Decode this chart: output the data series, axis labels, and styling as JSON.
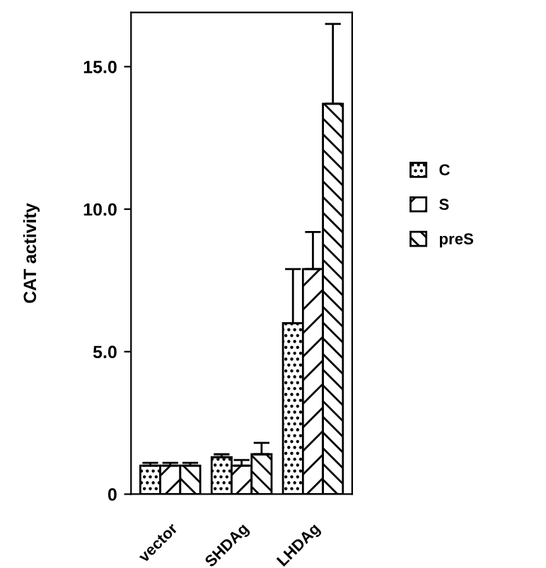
{
  "chart_data": {
    "type": "bar",
    "ylabel": "CAT activity",
    "categories": [
      "vector",
      "SHDAg",
      "LHDAg"
    ],
    "series": [
      {
        "name": "C",
        "color": "#000000",
        "values": [
          1.0,
          1.3,
          6.0
        ],
        "errors": [
          [
            1.0,
            1.1
          ],
          [
            1.3,
            1.4
          ],
          [
            6.0,
            7.9
          ]
        ]
      },
      {
        "name": "S",
        "color": "#000000",
        "values": [
          1.0,
          1.0,
          7.9
        ],
        "errors": [
          [
            1.0,
            1.1
          ],
          [
            1.0,
            1.2
          ],
          [
            7.9,
            9.2
          ]
        ]
      },
      {
        "name": "preS",
        "color": "#000000",
        "values": [
          1.0,
          1.4,
          13.7
        ],
        "errors": [
          [
            1.0,
            1.1
          ],
          [
            1.4,
            1.8
          ],
          [
            13.7,
            16.5
          ]
        ]
      }
    ],
    "ylim": [
      0,
      16.9
    ],
    "yticks": [
      0,
      {
        "value": 5,
        "label": "5.0"
      },
      {
        "value": 10,
        "label": "10.0"
      },
      {
        "value": 15,
        "label": "15.0"
      }
    ],
    "legend": "right"
  }
}
